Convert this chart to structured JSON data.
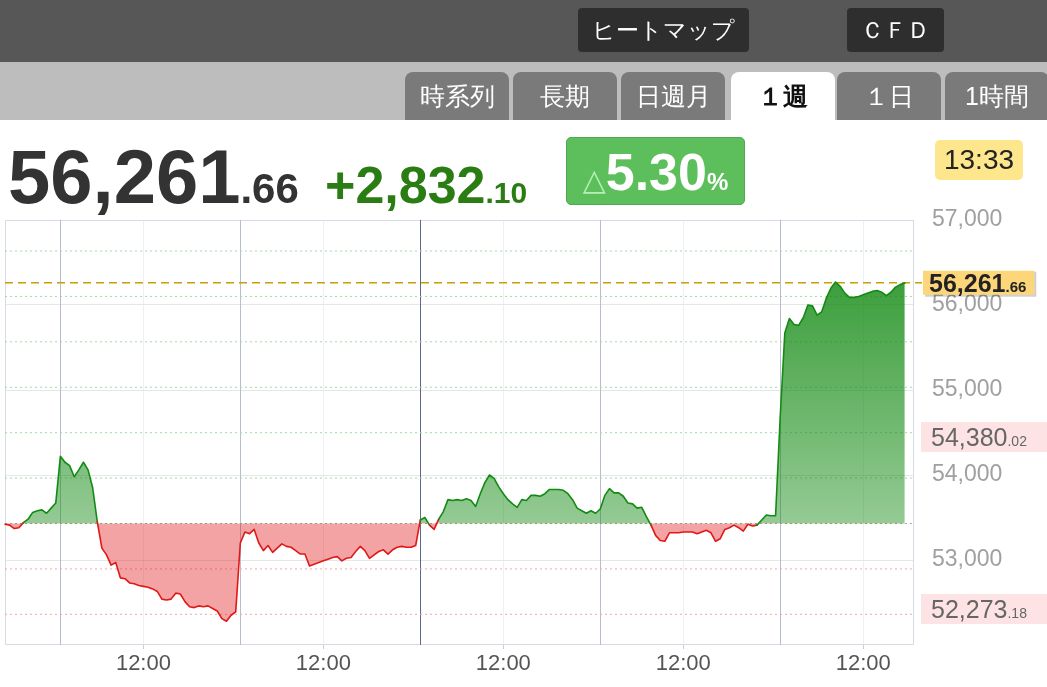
{
  "chart_data": {
    "type": "area",
    "grid": true,
    "legend": false,
    "marker": "none",
    "line_style": "solid",
    "annotations": [
      "ヒートマップ",
      "ＣＦＤ",
      "時系列",
      "長期",
      "日週月",
      "１週",
      "１日",
      "1時間",
      "56,261.66",
      "+2,832.10",
      "△5.30%",
      "13:33",
      "54,380.02",
      "52,273.18"
    ],
    "categories": [
      null,
      null,
      null,
      null,
      null,
      null,
      null,
      null,
      null,
      null,
      null,
      null,
      null,
      null,
      null,
      null,
      null,
      null,
      null,
      null,
      null,
      null,
      null,
      null,
      null,
      null,
      null,
      null,
      null,
      null,
      "12:00",
      null,
      null,
      null,
      null,
      null,
      null,
      null,
      null,
      null,
      null,
      null,
      null,
      null,
      null,
      null,
      null,
      null,
      null,
      null,
      null,
      null,
      null,
      null,
      null,
      null,
      null,
      null,
      null,
      null,
      null,
      null,
      null,
      null,
      null,
      null,
      null,
      null,
      null,
      "12:00",
      null,
      null,
      null,
      null,
      null,
      null,
      null,
      null,
      null,
      null,
      null,
      null,
      null,
      null,
      null,
      null,
      null,
      null,
      null,
      null,
      null,
      null,
      null,
      null,
      null,
      null,
      null,
      null,
      null,
      null,
      null,
      null,
      null,
      null,
      null,
      null,
      null,
      null,
      "12:00",
      null,
      null,
      null,
      null,
      null,
      null,
      null,
      null,
      null,
      null,
      null,
      null,
      null,
      null,
      null,
      null,
      null,
      null,
      null,
      null,
      null,
      null,
      null,
      null,
      null,
      null,
      null,
      null,
      null,
      null,
      null,
      null,
      null,
      null,
      null,
      null,
      null,
      null,
      "12:00",
      null,
      null,
      null,
      null,
      null,
      null,
      null,
      null,
      null,
      null,
      null,
      null,
      null,
      null,
      null,
      null,
      null,
      null,
      null,
      null,
      null,
      null,
      null,
      null,
      null,
      null,
      null,
      null,
      null,
      null,
      null,
      null,
      null,
      null,
      null,
      null,
      null,
      null,
      "12:00",
      null,
      null,
      null,
      null,
      null,
      null,
      null,
      null,
      null,
      null,
      null
    ],
    "values": [
      53420,
      53410,
      53370,
      53380,
      53440,
      53480,
      53560,
      53580,
      53590,
      53550,
      53610,
      53670,
      54220,
      54150,
      54110,
      53980,
      54060,
      54150,
      54060,
      53850,
      53450,
      53140,
      53060,
      52940,
      52970,
      52790,
      52780,
      52730,
      52720,
      52700,
      52690,
      52680,
      52660,
      52630,
      52540,
      52530,
      52540,
      52610,
      52600,
      52510,
      52450,
      52440,
      52460,
      52450,
      52460,
      52430,
      52400,
      52310,
      52280,
      52350,
      52390,
      53200,
      53330,
      53310,
      53360,
      53200,
      53110,
      53170,
      53090,
      53140,
      53190,
      53160,
      53150,
      53110,
      53070,
      53070,
      52930,
      52950,
      52970,
      52990,
      53010,
      53030,
      53040,
      52990,
      53020,
      53030,
      53100,
      53160,
      53110,
      53020,
      53060,
      53100,
      53120,
      53070,
      53120,
      53150,
      53160,
      53150,
      53150,
      53170,
      53470,
      53500,
      53410,
      53360,
      53480,
      53570,
      53710,
      53700,
      53710,
      53700,
      53720,
      53700,
      53630,
      53780,
      53910,
      54000,
      53960,
      53860,
      53780,
      53710,
      53660,
      53620,
      53710,
      53700,
      53760,
      53760,
      53750,
      53780,
      53830,
      53830,
      53830,
      53820,
      53780,
      53710,
      53610,
      53580,
      53550,
      53580,
      53550,
      53600,
      53760,
      53840,
      53790,
      53790,
      53750,
      53670,
      53660,
      53610,
      53620,
      53510,
      53410,
      53290,
      53230,
      53220,
      53320,
      53320,
      53320,
      53330,
      53330,
      53330,
      53310,
      53330,
      53350,
      53320,
      53220,
      53250,
      53360,
      53380,
      53410,
      53380,
      53340,
      53420,
      53400,
      53410,
      53470,
      53530,
      53520,
      53520,
      54680,
      55670,
      55840,
      55770,
      55760,
      55850,
      56000,
      55990,
      55880,
      55920,
      56080,
      56200,
      56270,
      56220,
      56140,
      56090,
      56090,
      56100,
      56120,
      56140,
      56160,
      56170,
      56150,
      56110,
      56150,
      56210,
      56240,
      56260,
      null,
      null
    ],
    "colors": [
      "#e01818",
      "#e01818",
      "#e01818",
      "#e01818",
      "#138a13",
      "#138a13",
      "#138a13",
      "#138a13",
      "#138a13",
      "#138a13",
      "#138a13",
      "#138a13",
      "#138a13",
      "#138a13",
      "#138a13",
      "#138a13",
      "#138a13",
      "#138a13",
      "#138a13",
      "#138a13",
      "#138a13",
      "#e01818",
      "#e01818",
      "#e01818",
      "#e01818",
      "#e01818",
      "#e01818",
      "#e01818",
      "#e01818",
      "#e01818",
      "#e01818",
      "#e01818",
      "#e01818",
      "#e01818",
      "#e01818",
      "#e01818",
      "#e01818",
      "#e01818",
      "#e01818",
      "#e01818",
      "#e01818",
      "#e01818",
      "#e01818",
      "#e01818",
      "#e01818",
      "#e01818",
      "#e01818",
      "#e01818",
      "#e01818",
      "#e01818",
      "#e01818",
      "#e01818",
      "#e01818",
      "#e01818",
      "#e01818",
      "#e01818",
      "#e01818",
      "#e01818",
      "#e01818",
      "#e01818",
      "#e01818",
      "#e01818",
      "#e01818",
      "#e01818",
      "#e01818",
      "#e01818",
      "#e01818",
      "#e01818",
      "#e01818",
      "#e01818",
      "#e01818",
      "#e01818",
      "#e01818",
      "#e01818",
      "#e01818",
      "#e01818",
      "#e01818",
      "#e01818",
      "#e01818",
      "#e01818",
      "#e01818",
      "#e01818",
      "#e01818",
      "#e01818",
      "#e01818",
      "#e01818",
      "#e01818",
      "#e01818",
      "#e01818",
      "#e01818",
      "#138a13",
      "#138a13",
      "#e01818",
      "#e01818",
      "#138a13",
      "#138a13",
      "#138a13",
      "#138a13",
      "#138a13",
      "#138a13",
      "#138a13",
      "#138a13",
      "#138a13",
      "#138a13",
      "#138a13",
      "#138a13",
      "#138a13",
      "#138a13",
      "#138a13",
      "#138a13",
      "#138a13",
      "#138a13",
      "#138a13",
      "#138a13",
      "#138a13",
      "#138a13",
      "#138a13",
      "#138a13",
      "#138a13",
      "#138a13",
      "#138a13",
      "#138a13",
      "#138a13",
      "#138a13",
      "#138a13",
      "#138a13",
      "#138a13",
      "#138a13",
      "#138a13",
      "#138a13",
      "#138a13",
      "#138a13",
      "#138a13",
      "#138a13",
      "#138a13",
      "#138a13",
      "#138a13",
      "#138a13",
      "#138a13",
      "#138a13",
      "#e01818",
      "#e01818",
      "#e01818",
      "#e01818",
      "#e01818",
      "#e01818",
      "#e01818",
      "#e01818",
      "#e01818",
      "#e01818",
      "#e01818",
      "#e01818",
      "#e01818",
      "#e01818",
      "#e01818",
      "#e01818",
      "#e01818",
      "#e01818",
      "#e01818",
      "#e01818",
      "#e01818",
      "#e01818",
      "#e01818",
      "#e01818",
      "#138a13",
      "#138a13",
      "#138a13",
      "#138a13",
      "#138a13",
      "#138a13",
      "#138a13",
      "#138a13",
      "#138a13",
      "#138a13",
      "#138a13",
      "#138a13",
      "#138a13",
      "#138a13",
      "#138a13",
      "#138a13",
      "#138a13",
      "#138a13",
      "#138a13",
      "#138a13",
      "#138a13",
      "#138a13",
      "#138a13",
      "#138a13",
      "#138a13",
      "#138a13",
      "#138a13",
      "#138a13",
      "#138a13",
      "#138a13",
      "#138a13",
      "#138a13",
      "#138a13",
      "#138a13"
    ],
    "ylim": [
      52000,
      57000
    ],
    "yticks": [
      {
        "value": 53000,
        "label": "53,000"
      },
      {
        "value": 54000,
        "label": "54,000"
      },
      {
        "value": 55000,
        "label": "55,000"
      },
      {
        "value": 56000,
        "label": "56,000"
      },
      {
        "value": 57000,
        "label": "57,000"
      }
    ],
    "ref_lines": [
      {
        "axis": "y",
        "value": 53429.56,
        "color": "#a8a8a8",
        "line_style": "dotted"
      },
      {
        "axis": "y",
        "value": 53964,
        "color": "#a6d8a6",
        "line_style": "dotted"
      },
      {
        "axis": "y",
        "value": 54498,
        "color": "#a6d8a6",
        "line_style": "dotted"
      },
      {
        "axis": "y",
        "value": 55032,
        "color": "#a6d8a6",
        "line_style": "dotted"
      },
      {
        "axis": "y",
        "value": 55567,
        "color": "#a6d8a6",
        "line_style": "dotted"
      },
      {
        "axis": "y",
        "value": 56101,
        "color": "#a6d8a6",
        "line_style": "dotted"
      },
      {
        "axis": "y",
        "value": 56635,
        "color": "#a6d8a6",
        "line_style": "dotted"
      },
      {
        "axis": "y",
        "value": 52895,
        "color": "#f2a6ae",
        "line_style": "dotted"
      },
      {
        "axis": "y",
        "value": 52361,
        "color": "#f2a6ae",
        "line_style": "dotted"
      },
      {
        "axis": "y",
        "value": 56261.66,
        "label": "56,261.66",
        "color": "#c8a000",
        "line_style": "dashed"
      }
    ]
  }
}
